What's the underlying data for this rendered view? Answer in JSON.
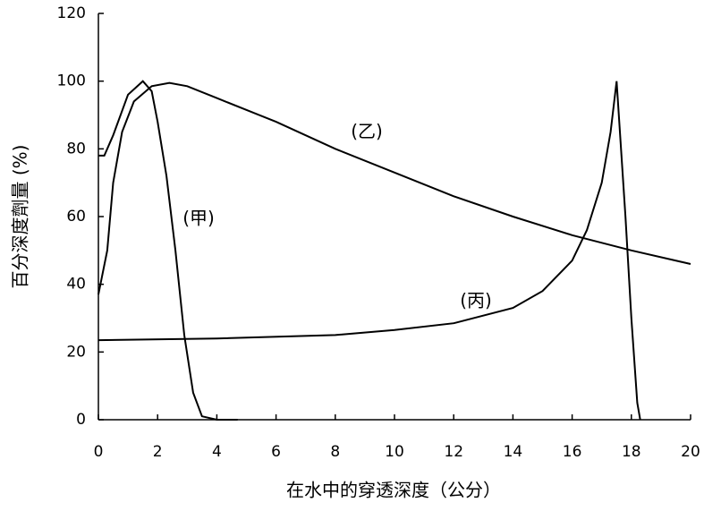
{
  "chart_data": {
    "type": "line",
    "x_label": "在水中的穿透深度（公分）",
    "y_label": "百分深度劑量 (%)",
    "xlim": [
      0,
      20
    ],
    "xticks": [
      0,
      2,
      4,
      6,
      8,
      10,
      12,
      14,
      16,
      18,
      20
    ],
    "ylim": [
      0,
      120
    ],
    "yticks": [
      0,
      20,
      40,
      60,
      80,
      100,
      120
    ],
    "grid": false,
    "series": [
      {
        "name": "(甲)",
        "color": "#000000",
        "x": [
          0,
          0.2,
          0.5,
          1.0,
          1.5,
          1.8,
          2.0,
          2.3,
          2.6,
          2.9,
          3.2,
          3.5,
          4.0,
          4.7
        ],
        "values": [
          78,
          78,
          84,
          96,
          100,
          97,
          88,
          72,
          50,
          25,
          8,
          1,
          0,
          0
        ]
      },
      {
        "name": "(乙)",
        "color": "#000000",
        "x": [
          0,
          0.3,
          0.5,
          0.8,
          1.2,
          1.8,
          2.4,
          3,
          4,
          6,
          8,
          10,
          12,
          14,
          16,
          18,
          20
        ],
        "values": [
          37,
          50,
          70,
          85,
          94,
          98.5,
          99.5,
          98.5,
          95,
          88,
          80,
          73,
          66,
          60,
          54.5,
          50,
          46
        ]
      },
      {
        "name": "(丙)",
        "color": "#000000",
        "x": [
          0,
          4,
          8,
          10,
          12,
          14,
          15,
          16,
          16.5,
          17,
          17.3,
          17.5,
          17.8,
          18.0,
          18.2,
          18.3
        ],
        "values": [
          23.5,
          24,
          25,
          26.5,
          28.5,
          33,
          38,
          47,
          56,
          70,
          85,
          100,
          60,
          30,
          5,
          0
        ]
      }
    ]
  }
}
